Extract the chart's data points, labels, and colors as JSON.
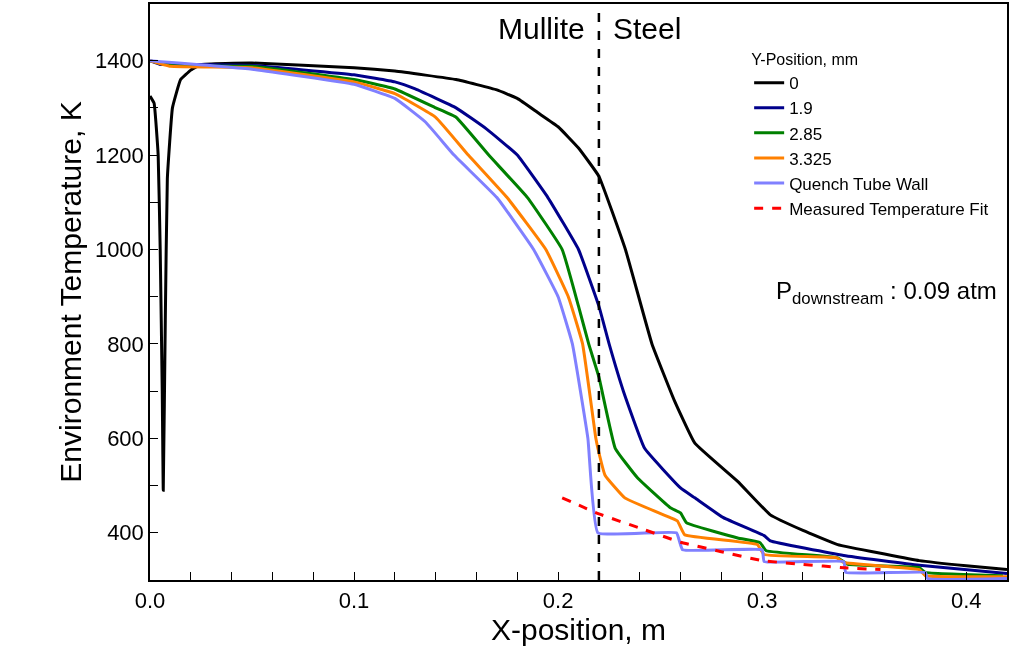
{
  "chart_data": {
    "type": "line",
    "xlabel": "X-position, m",
    "ylabel": "Environment Temperature, K",
    "legend_title": "Y-Position, mm",
    "legend": "top right",
    "xlim": [
      0,
      0.42
    ],
    "ylim": [
      300,
      1520
    ],
    "xticks": [
      {
        "value": 0,
        "label": "0.0"
      },
      {
        "value": 0.02,
        "label": null
      },
      {
        "value": 0.04,
        "label": null
      },
      {
        "value": 0.06,
        "label": null
      },
      {
        "value": 0.08,
        "label": null
      },
      {
        "value": 0.1,
        "label": "0.1"
      },
      {
        "value": 0.12,
        "label": null
      },
      {
        "value": 0.14,
        "label": null
      },
      {
        "value": 0.16,
        "label": null
      },
      {
        "value": 0.18,
        "label": null
      },
      {
        "value": 0.2,
        "label": "0.2"
      },
      {
        "value": 0.22,
        "label": null
      },
      {
        "value": 0.24,
        "label": null
      },
      {
        "value": 0.26,
        "label": null
      },
      {
        "value": 0.28,
        "label": null
      },
      {
        "value": 0.3,
        "label": "0.3"
      },
      {
        "value": 0.32,
        "label": null
      },
      {
        "value": 0.34,
        "label": null
      },
      {
        "value": 0.36,
        "label": null
      },
      {
        "value": 0.38,
        "label": null
      },
      {
        "value": 0.4,
        "label": "0.4"
      }
    ],
    "yticks": [
      400,
      {
        "value": 500,
        "label": null
      },
      600,
      {
        "value": 700,
        "label": null
      },
      800,
      {
        "value": 900,
        "label": null
      },
      1000,
      {
        "value": 1100,
        "label": null
      },
      1200,
      {
        "value": 1300,
        "label": null
      },
      1400
    ],
    "ref_lines": [
      {
        "axis": "x",
        "value": 0.22,
        "color": "#000000",
        "line_style": "dashed"
      }
    ],
    "annotations": [
      "Mullite",
      "Steel",
      "P$_{downstream}$ : 0.09 atm"
    ],
    "series": [
      {
        "name": "0",
        "color": "#000000",
        "line_style": "solid",
        "x": [
          0,
          0.002,
          0.004,
          0.005,
          0.006,
          0.0065,
          0.0075,
          0.0085,
          0.011,
          0.015,
          0.02,
          0.025,
          0.05,
          0.1,
          0.12,
          0.15,
          0.17,
          0.18,
          0.19,
          0.2,
          0.21,
          0.22,
          0.233,
          0.246,
          0.257,
          0.267,
          0.288,
          0.304,
          0.32,
          0.337,
          0.36,
          0.377,
          0.4,
          0.42
        ],
        "values": [
          1325,
          1310,
          1200,
          1000,
          700,
          490,
          850,
          1150,
          1300,
          1360,
          1380,
          1392,
          1395,
          1385,
          1378,
          1360,
          1338,
          1320,
          1290,
          1260,
          1215,
          1155,
          1000,
          800,
          680,
          590,
          509,
          438,
          405,
          375,
          355,
          341,
          330,
          322
        ]
      },
      {
        "name": "1.9",
        "color": "#00008b",
        "line_style": "solid",
        "x": [
          0,
          0.005,
          0.02,
          0.05,
          0.1,
          0.12,
          0.13,
          0.15,
          0.165,
          0.18,
          0.195,
          0.21,
          0.22,
          0.225,
          0.232,
          0.2424,
          0.26,
          0.267,
          0.281,
          0.301,
          0.304,
          0.34,
          0.377,
          0.42
        ],
        "values": [
          1400,
          1392,
          1392,
          1390,
          1370,
          1355,
          1340,
          1300,
          1255,
          1200,
          1110,
          1000,
          880,
          800,
          700,
          579,
          495,
          474,
          432,
          394,
          383,
          352,
          331,
          314
        ]
      },
      {
        "name": "2.85",
        "color": "#008000",
        "line_style": "solid",
        "x": [
          0,
          0.01,
          0.05,
          0.1,
          0.12,
          0.14,
          0.15,
          0.166,
          0.185,
          0.202,
          0.21,
          0.215,
          0.22,
          0.228,
          0.239,
          0.255,
          0.26,
          0.263,
          0.288,
          0.299,
          0.302,
          0.337,
          0.342,
          0.377,
          0.38,
          0.418
        ],
        "values": [
          1400,
          1390,
          1388,
          1360,
          1340,
          1300,
          1280,
          1200,
          1110,
          1000,
          880,
          800,
          730,
          579,
          516,
          453,
          442,
          421,
          389,
          379,
          362,
          347,
          333,
          326,
          316,
          309
        ]
      },
      {
        "name": "3.325",
        "color": "#ff8000",
        "line_style": "solid",
        "x": [
          0,
          0.01,
          0.05,
          0.1,
          0.12,
          0.14,
          0.156,
          0.175,
          0.194,
          0.205,
          0.212,
          0.2185,
          0.2195,
          0.223,
          0.2327,
          0.255,
          0.2585,
          0.262,
          0.2976,
          0.301,
          0.3366,
          0.34,
          0.377,
          0.38,
          0.42
        ],
        "values": [
          1400,
          1388,
          1385,
          1355,
          1330,
          1280,
          1200,
          1110,
          1000,
          900,
          800,
          600,
          579,
          522,
          474,
          432,
          425,
          396,
          375,
          354,
          347,
          337,
          322,
          309,
          307
        ]
      },
      {
        "name": "Quench Tube Wall",
        "color": "#8080ff",
        "line_style": "solid",
        "x": [
          0,
          0.05,
          0.1,
          0.12,
          0.135,
          0.149,
          0.17,
          0.188,
          0.2,
          0.207,
          0.2146,
          0.2195,
          0.258,
          0.261,
          0.3,
          0.301,
          0.34,
          0.341,
          0.38,
          0.381,
          0.42
        ],
        "values": [
          1400,
          1382,
          1350,
          1320,
          1270,
          1200,
          1110,
          1000,
          900,
          800,
          600,
          400,
          400,
          364,
          364,
          339,
          339,
          316,
          316,
          303,
          303
        ]
      },
      {
        "name": "Measured Temperature Fit",
        "color": "#ff0000",
        "line_style": "dashed",
        "x": [
          0.202,
          0.22,
          0.24,
          0.26,
          0.28,
          0.3,
          0.32,
          0.34,
          0.358
        ],
        "values": [
          474,
          440,
          410,
          380,
          360,
          341,
          333,
          326,
          322
        ]
      }
    ]
  }
}
